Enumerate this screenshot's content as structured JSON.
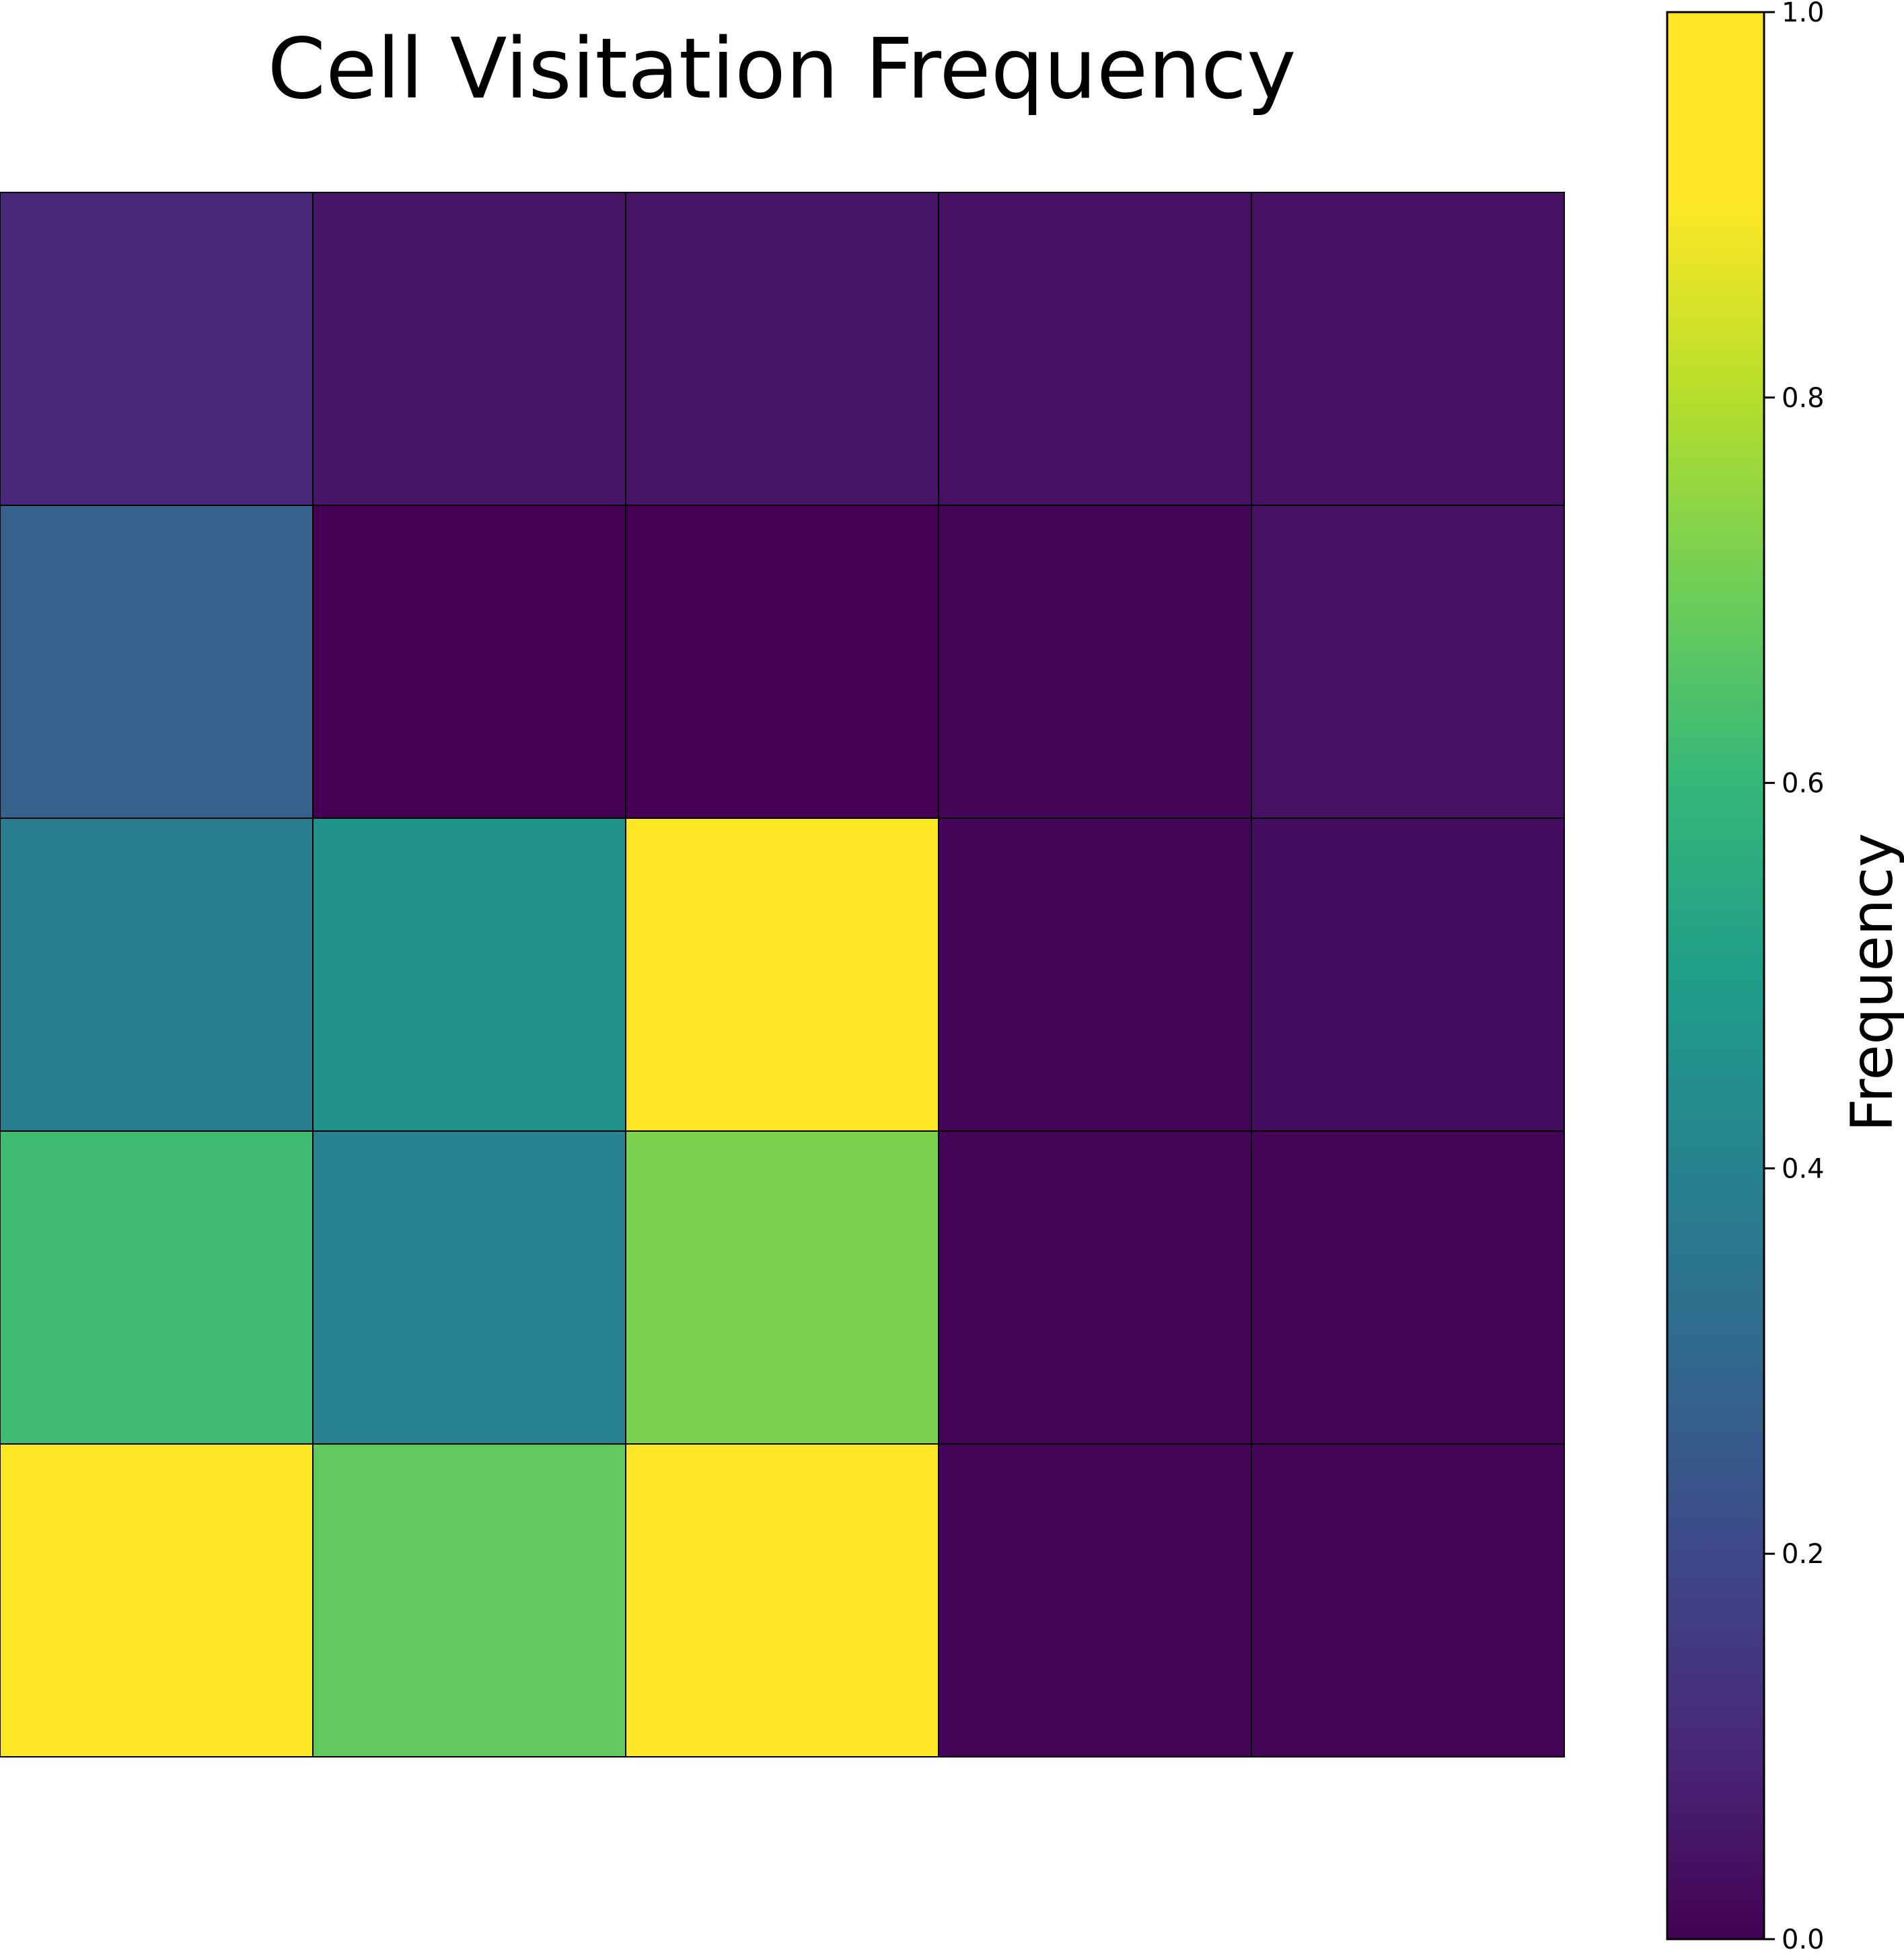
{
  "chart_data": {
    "type": "heatmap",
    "title": "Cell Visitation Frequency",
    "colorbar": {
      "label": "Frequency",
      "range": [
        0.0,
        1.0
      ],
      "ticks": [
        {
          "value": 0.0,
          "label": "0.0"
        },
        {
          "value": 0.2,
          "label": "0.2"
        },
        {
          "value": 0.4,
          "label": "0.4"
        },
        {
          "value": 0.6,
          "label": "0.6"
        },
        {
          "value": 0.8,
          "label": "0.8"
        },
        {
          "value": 1.0,
          "label": "1.0"
        }
      ],
      "colormap": "viridis"
    },
    "axes_visible": false,
    "grid": true,
    "rows": 5,
    "cols": 5,
    "values": [
      [
        0.1,
        0.05,
        0.05,
        0.04,
        0.04
      ],
      [
        0.28,
        0.0,
        0.0,
        0.01,
        0.04
      ],
      [
        0.38,
        0.46,
        0.9,
        0.01,
        0.03
      ],
      [
        0.62,
        0.4,
        0.72,
        0.01,
        0.01
      ],
      [
        1.0,
        0.68,
        1.0,
        0.01,
        0.01
      ]
    ]
  }
}
